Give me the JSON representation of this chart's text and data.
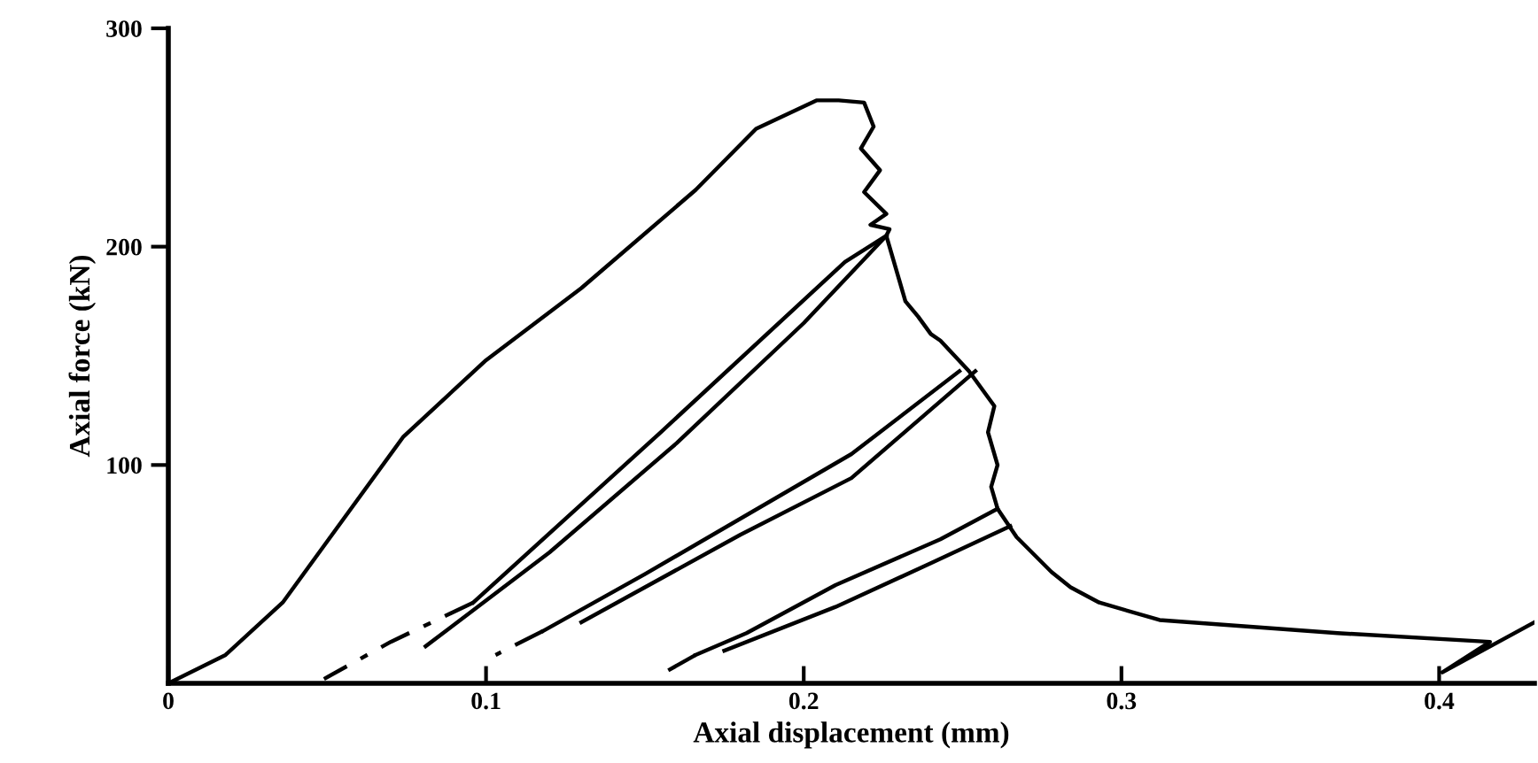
{
  "chart_data": {
    "type": "line",
    "xlabel": "Axial displacement (mm)",
    "ylabel": "Axial force (kN)",
    "xlim": [
      0,
      0.43
    ],
    "ylim": [
      0,
      300
    ],
    "xticks": [
      0,
      0.1,
      0.2,
      0.3,
      0.4
    ],
    "yticks": [
      100,
      200,
      300
    ],
    "grid": false,
    "legend": false,
    "marker": "none",
    "series": [
      {
        "color": "#000000",
        "line_style": "solid",
        "x": [
          0,
          0.018,
          0.036,
          0.055,
          0.074,
          0.1,
          0.13,
          0.166,
          0.185,
          0.204,
          0.211,
          0.219,
          0.222,
          0.218,
          0.224,
          0.219,
          0.226,
          0.221,
          0.227,
          0.226,
          0.232,
          0.236,
          0.24,
          0.243,
          0.252,
          0.256,
          0.26,
          0.258,
          0.261,
          0.259,
          0.261,
          0.267,
          0.278,
          0.284,
          0.293,
          0.312,
          0.368,
          0.416,
          0.401,
          0.43
        ],
        "values": [
          0,
          13,
          37,
          75,
          113,
          148,
          181,
          226,
          254,
          267,
          267,
          266,
          255,
          245,
          235,
          225,
          215,
          210,
          208,
          205,
          175,
          168,
          160,
          157,
          143,
          135,
          127,
          115,
          100,
          90,
          80,
          67,
          51,
          44,
          37,
          29,
          23,
          19,
          5,
          28
        ]
      },
      {
        "color": "#000000",
        "line_style": "solid",
        "x": [
          0.226,
          0.213,
          0.155,
          0.096
        ],
        "values": [
          205,
          193,
          115,
          37
        ]
      },
      {
        "color": "#000000",
        "line_style": "dashed",
        "x": [
          0.096,
          0.07,
          0.049
        ],
        "values": [
          37,
          19,
          2
        ]
      },
      {
        "color": "#000000",
        "line_style": "solid",
        "x": [
          0.081,
          0.12,
          0.16,
          0.2,
          0.226
        ],
        "values": [
          17,
          60,
          110,
          165,
          205
        ]
      },
      {
        "color": "#000000",
        "line_style": "solid",
        "x": [
          0.249,
          0.215,
          0.15,
          0.118
        ],
        "values": [
          143,
          105,
          50,
          24
        ]
      },
      {
        "color": "#000000",
        "line_style": "dashed",
        "x": [
          0.118,
          0.103
        ],
        "values": [
          24,
          13
        ]
      },
      {
        "color": "#000000",
        "line_style": "solid",
        "x": [
          0.13,
          0.18,
          0.215,
          0.254
        ],
        "values": [
          28,
          68,
          94,
          143
        ]
      },
      {
        "color": "#000000",
        "line_style": "solid",
        "x": [
          0.261,
          0.243,
          0.21,
          0.182,
          0.166
        ],
        "values": [
          80,
          66,
          45,
          23,
          13
        ]
      },
      {
        "color": "#000000",
        "line_style": "dashed",
        "x": [
          0.166,
          0.155
        ],
        "values": [
          13,
          4
        ]
      },
      {
        "color": "#000000",
        "line_style": "solid",
        "x": [
          0.175,
          0.21,
          0.24,
          0.265
        ],
        "values": [
          15,
          35,
          55,
          72
        ]
      }
    ]
  }
}
